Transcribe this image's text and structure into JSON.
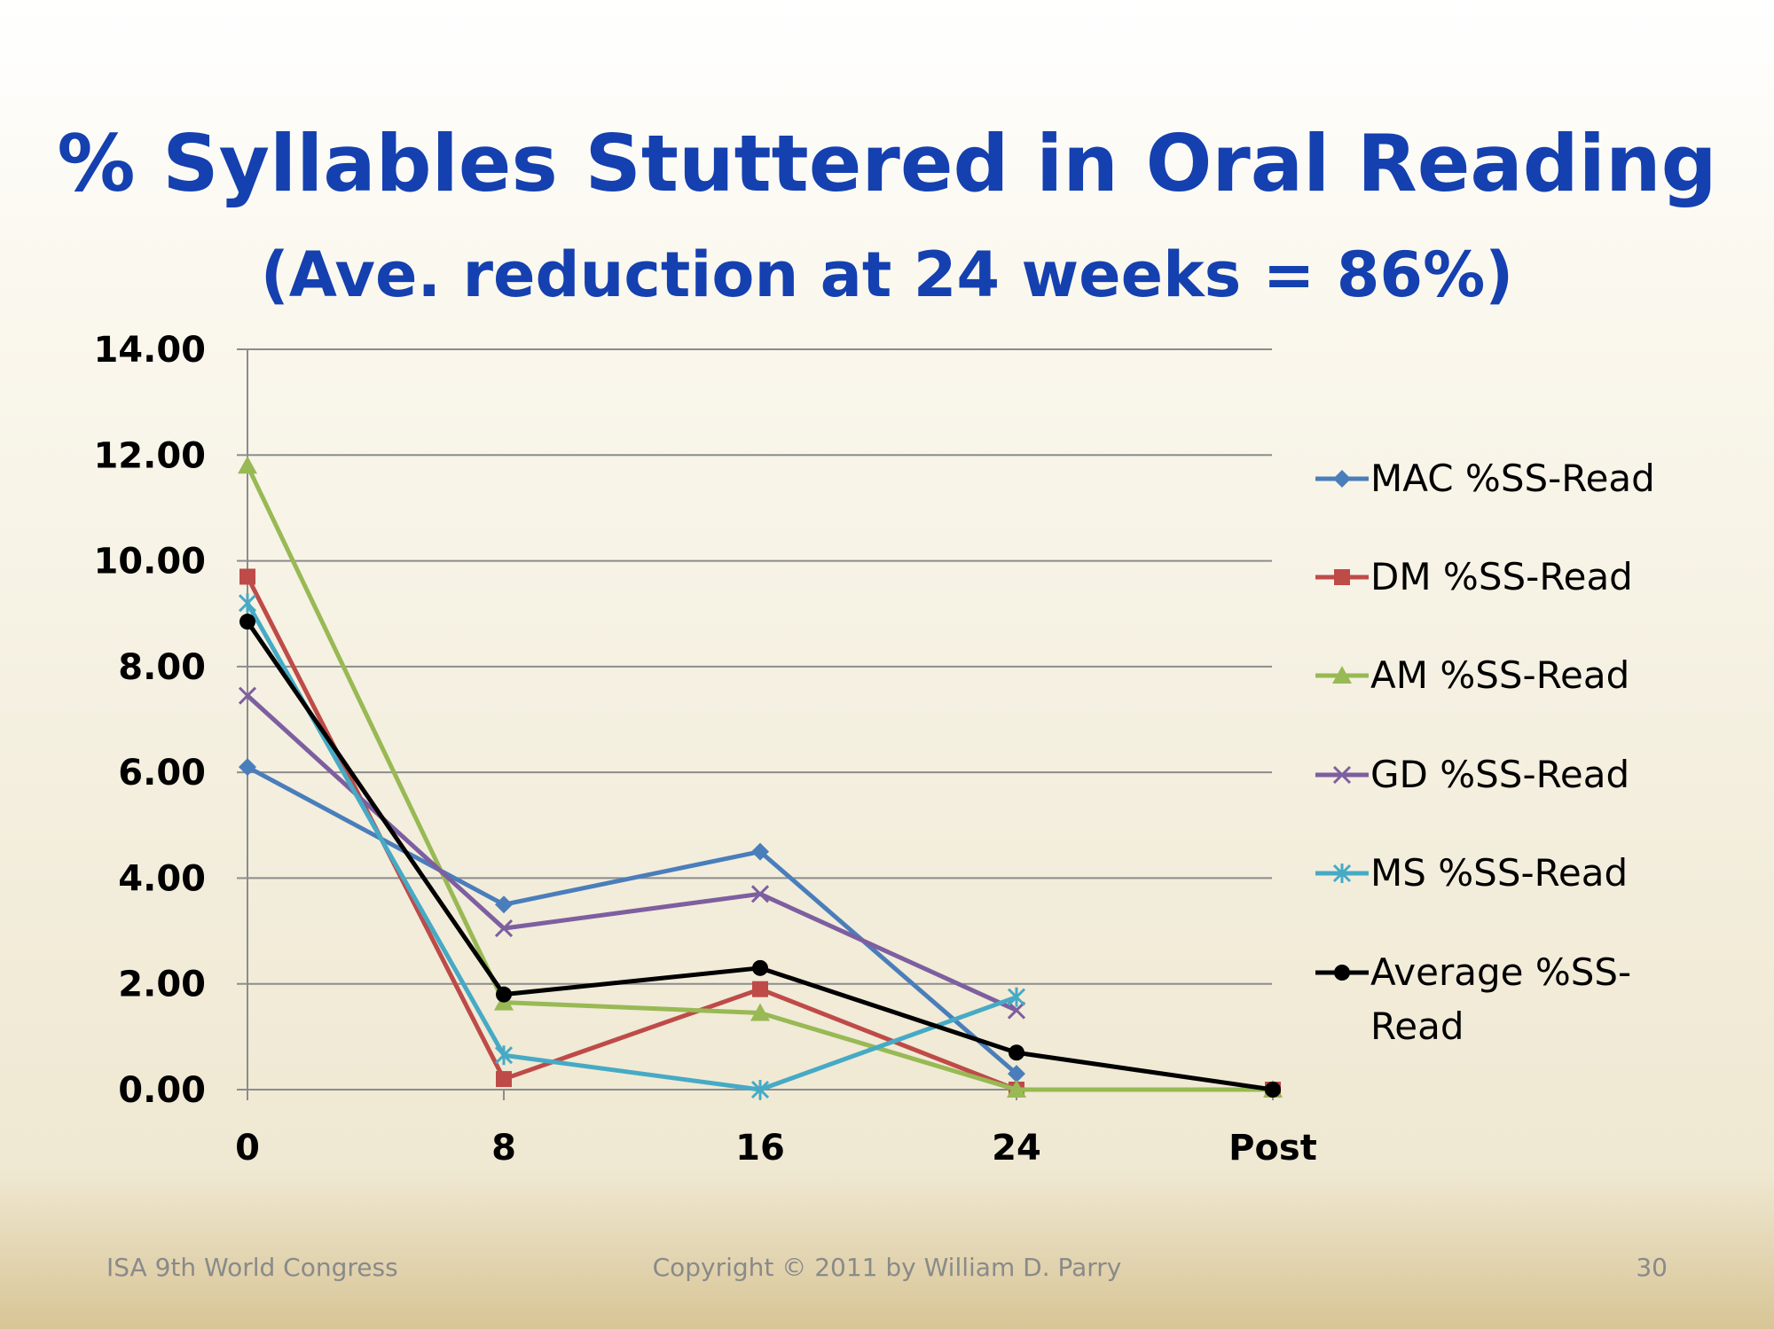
{
  "slide": {
    "title": "% Syllables Stuttered in Oral Reading",
    "subtitle": "(Ave. reduction at 24 weeks = 86%)",
    "footer_left": "ISA 9th World Congress",
    "footer_center": "Copyright © 2011 by William D. Parry",
    "page_number": "30"
  },
  "chart_data": {
    "type": "line",
    "title": "% Syllables Stuttered in Oral Reading",
    "categories": [
      "0",
      "8",
      "16",
      "24",
      "Post"
    ],
    "ylim": [
      0,
      14
    ],
    "yticks": [
      "0.00",
      "2.00",
      "4.00",
      "6.00",
      "8.00",
      "10.00",
      "12.00",
      "14.00"
    ],
    "grid": true,
    "legend_position": "right",
    "series": [
      {
        "name": "MAC %SS-Read",
        "color": "#4a7ebb",
        "marker": "diamond",
        "values": [
          6.1,
          3.5,
          4.5,
          0.3,
          null
        ]
      },
      {
        "name": "DM %SS-Read",
        "color": "#be4b48",
        "marker": "square",
        "values": [
          9.7,
          0.2,
          1.9,
          0.0,
          0.0
        ]
      },
      {
        "name": "AM %SS-Read",
        "color": "#98b954",
        "marker": "triangle",
        "values": [
          11.8,
          1.65,
          1.45,
          0.0,
          0.0
        ]
      },
      {
        "name": "GD %SS-Read",
        "color": "#7d5fa0",
        "marker": "x",
        "values": [
          7.45,
          3.05,
          3.7,
          1.5,
          null
        ]
      },
      {
        "name": "MS %SS-Read",
        "color": "#46aac5",
        "marker": "star",
        "values": [
          9.2,
          0.65,
          0.0,
          1.75,
          null
        ]
      },
      {
        "name": "Average %SS-Read",
        "legend_lines": [
          "Average %SS-",
          "Read"
        ],
        "color": "#000000",
        "marker": "circle",
        "values": [
          8.85,
          1.8,
          2.3,
          0.7,
          0.0
        ]
      }
    ]
  }
}
